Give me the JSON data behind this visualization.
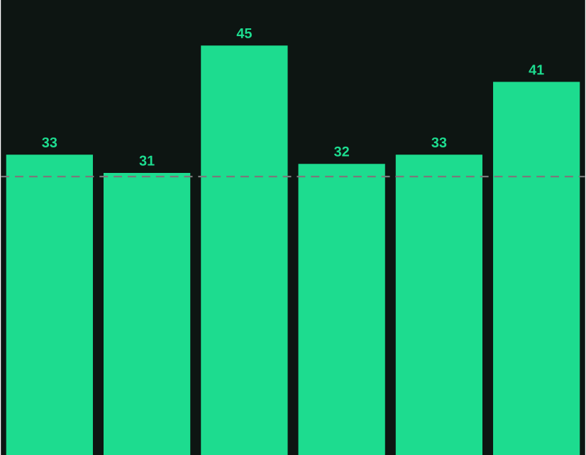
{
  "chart_data": {
    "type": "bar",
    "categories": [
      null,
      null,
      null,
      null,
      null,
      null
    ],
    "values": [
      33,
      31,
      45,
      32,
      33,
      41
    ],
    "color": "#1ddc8f",
    "data_labels": true,
    "ylim": [
      0,
      50
    ],
    "ref_lines": [
      {
        "axis": "y",
        "value": 30.6,
        "color": "#7a7a7a",
        "line_style": "dashed"
      }
    ]
  }
}
